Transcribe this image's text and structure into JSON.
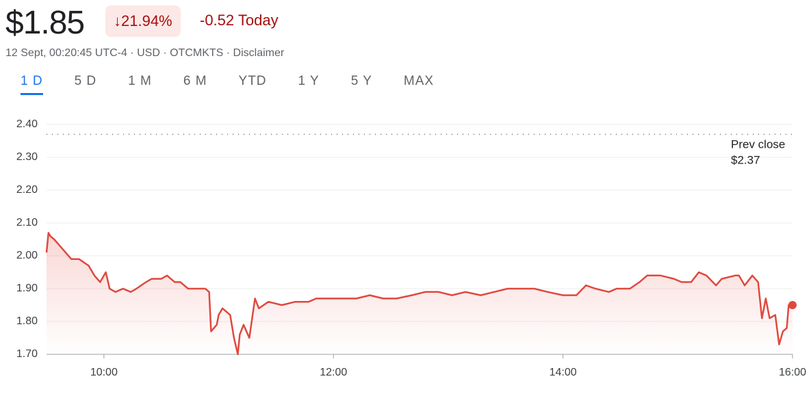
{
  "header": {
    "price": "$1.85",
    "change_percent": "21.94%",
    "change_today": "-0.52 Today",
    "subtitle": "12 Sept, 00:20:45 UTC-4 · USD · OTCMKTS · Disclaimer"
  },
  "tabs": [
    "1 D",
    "5 D",
    "1 M",
    "6 M",
    "YTD",
    "1 Y",
    "5 Y",
    "MAX"
  ],
  "chart_data": {
    "type": "line",
    "x": [
      "09:30",
      "09:31",
      "09:32",
      "09:34",
      "09:37",
      "09:40",
      "09:43",
      "09:47",
      "09:52",
      "09:55",
      "09:58",
      "10:01",
      "10:03",
      "10:06",
      "10:10",
      "10:14",
      "10:17",
      "10:22",
      "10:25",
      "10:30",
      "10:33",
      "10:37",
      "10:40",
      "10:44",
      "10:49",
      "10:53",
      "10:55",
      "10:56",
      "10:59",
      "11:00",
      "11:02",
      "11:06",
      "11:08",
      "11:10",
      "11:11",
      "11:13",
      "11:16",
      "11:18",
      "11:19",
      "11:21",
      "11:26",
      "11:33",
      "11:40",
      "11:47",
      "11:51",
      "11:58",
      "12:05",
      "12:12",
      "12:19",
      "12:26",
      "12:33",
      "12:41",
      "12:48",
      "12:55",
      "13:02",
      "13:09",
      "13:17",
      "13:24",
      "13:31",
      "13:38",
      "13:45",
      "13:52",
      "14:00",
      "14:07",
      "14:12",
      "14:17",
      "14:24",
      "14:28",
      "14:35",
      "14:40",
      "14:44",
      "14:51",
      "14:58",
      "15:02",
      "15:07",
      "15:11",
      "15:15",
      "15:20",
      "15:23",
      "15:30",
      "15:32",
      "15:35",
      "15:39",
      "15:42",
      "15:44",
      "15:46",
      "15:48",
      "15:51",
      "15:53",
      "15:55",
      "15:57",
      "15:58",
      "16:00"
    ],
    "series": [
      {
        "name": "Price",
        "color": "#e0483e",
        "values": [
          2.01,
          2.07,
          2.06,
          2.05,
          2.03,
          2.01,
          1.99,
          1.99,
          1.97,
          1.94,
          1.92,
          1.95,
          1.9,
          1.89,
          1.9,
          1.89,
          1.9,
          1.92,
          1.93,
          1.93,
          1.94,
          1.92,
          1.92,
          1.9,
          1.9,
          1.9,
          1.89,
          1.77,
          1.79,
          1.82,
          1.84,
          1.82,
          1.75,
          1.7,
          1.76,
          1.79,
          1.75,
          1.83,
          1.87,
          1.84,
          1.86,
          1.85,
          1.86,
          1.86,
          1.87,
          1.87,
          1.87,
          1.87,
          1.88,
          1.87,
          1.87,
          1.88,
          1.89,
          1.89,
          1.88,
          1.89,
          1.88,
          1.89,
          1.9,
          1.9,
          1.9,
          1.89,
          1.88,
          1.88,
          1.91,
          1.9,
          1.89,
          1.9,
          1.9,
          1.92,
          1.94,
          1.94,
          1.93,
          1.92,
          1.92,
          1.95,
          1.94,
          1.91,
          1.93,
          1.94,
          1.94,
          1.91,
          1.94,
          1.92,
          1.81,
          1.87,
          1.81,
          1.82,
          1.73,
          1.77,
          1.78,
          1.85,
          1.85
        ]
      }
    ],
    "xlim": [
      "09:30",
      "16:00"
    ],
    "xticks": [
      "10:00",
      "12:00",
      "14:00",
      "16:00"
    ],
    "ylim": [
      1.7,
      2.4
    ],
    "yticks": [
      {
        "value": 1.7,
        "label": "1.70"
      },
      {
        "value": 1.8,
        "label": "1.80"
      },
      {
        "value": 1.9,
        "label": "1.90"
      },
      {
        "value": 2.0,
        "label": "2.00"
      },
      {
        "value": 2.1,
        "label": "2.10"
      },
      {
        "value": 2.2,
        "label": "2.20"
      },
      {
        "value": 2.3,
        "label": "2.30"
      },
      {
        "value": 2.4,
        "label": "2.40"
      }
    ],
    "grid": true,
    "prev_close": {
      "text": "Prev close",
      "value": 2.37,
      "label": "$2.37"
    }
  }
}
